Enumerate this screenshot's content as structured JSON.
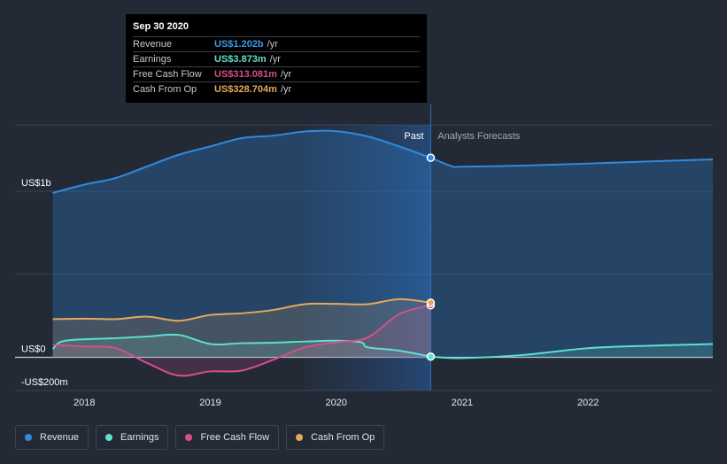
{
  "tooltip": {
    "date": "Sep 30 2020",
    "rows": [
      {
        "name": "Revenue",
        "value": "US$1.202b",
        "unit": "/yr",
        "color": "#3d9ae8"
      },
      {
        "name": "Earnings",
        "value": "US$3.873m",
        "unit": "/yr",
        "color": "#5fe0cc"
      },
      {
        "name": "Free Cash Flow",
        "value": "US$313.081m",
        "unit": "/yr",
        "color": "#d4508c"
      },
      {
        "name": "Cash From Op",
        "value": "US$328.704m",
        "unit": "/yr",
        "color": "#e8a85c"
      }
    ]
  },
  "legend": [
    {
      "label": "Revenue",
      "color": "#2f8ae0"
    },
    {
      "label": "Earnings",
      "color": "#5fe0cc"
    },
    {
      "label": "Free Cash Flow",
      "color": "#d4508c"
    },
    {
      "label": "Cash From Op",
      "color": "#e8a85c"
    }
  ],
  "chart_data": {
    "type": "line",
    "title": "",
    "y_axis_labels": [
      "US$1b",
      "US$0",
      "-US$200m"
    ],
    "x_tick_labels": [
      "2018",
      "2019",
      "2020",
      "2021",
      "2022"
    ],
    "past_label": "Past",
    "forecast_label": "Analysts Forecasts",
    "ylim": [
      -200,
      1400
    ],
    "xlim": [
      2017.45,
      2022.99
    ],
    "divider_x": 2020.75,
    "shade_start_x": 2019.75,
    "series": [
      {
        "name": "Revenue",
        "color": "#2f8ae0",
        "fill": true,
        "past": [
          [
            2017.75,
            990
          ],
          [
            2018.0,
            1040
          ],
          [
            2018.25,
            1080
          ],
          [
            2018.5,
            1150
          ],
          [
            2018.75,
            1220
          ],
          [
            2019.0,
            1270
          ],
          [
            2019.25,
            1320
          ],
          [
            2019.5,
            1335
          ],
          [
            2019.75,
            1360
          ],
          [
            2020.0,
            1362
          ],
          [
            2020.25,
            1330
          ],
          [
            2020.5,
            1270
          ],
          [
            2020.75,
            1202
          ]
        ],
        "forecast": [
          [
            2020.75,
            1202
          ],
          [
            2020.92,
            1150
          ],
          [
            2021.0,
            1148
          ],
          [
            2021.5,
            1155
          ],
          [
            2022.0,
            1167
          ],
          [
            2022.5,
            1180
          ],
          [
            2022.99,
            1192
          ]
        ]
      },
      {
        "name": "Earnings",
        "color": "#5fe0cc",
        "fill": true,
        "past": [
          [
            2017.75,
            50
          ],
          [
            2017.85,
            100
          ],
          [
            2018.25,
            115
          ],
          [
            2018.5,
            125
          ],
          [
            2018.75,
            135
          ],
          [
            2019.0,
            80
          ],
          [
            2019.25,
            85
          ],
          [
            2019.5,
            88
          ],
          [
            2019.75,
            95
          ],
          [
            2020.0,
            100
          ],
          [
            2020.2,
            90
          ],
          [
            2020.25,
            60
          ],
          [
            2020.5,
            40
          ],
          [
            2020.75,
            3.9
          ]
        ],
        "forecast": [
          [
            2020.75,
            3.9
          ],
          [
            2021.0,
            -5
          ],
          [
            2021.5,
            15
          ],
          [
            2022.0,
            55
          ],
          [
            2022.5,
            70
          ],
          [
            2022.99,
            80
          ]
        ]
      },
      {
        "name": "Free Cash Flow",
        "color": "#d4508c",
        "fill": true,
        "past": [
          [
            2017.75,
            75
          ],
          [
            2018.0,
            65
          ],
          [
            2018.25,
            55
          ],
          [
            2018.5,
            -35
          ],
          [
            2018.75,
            -110
          ],
          [
            2019.0,
            -85
          ],
          [
            2019.25,
            -80
          ],
          [
            2019.5,
            -15
          ],
          [
            2019.75,
            60
          ],
          [
            2020.0,
            90
          ],
          [
            2020.25,
            120
          ],
          [
            2020.5,
            260
          ],
          [
            2020.75,
            313
          ]
        ],
        "forecast": []
      },
      {
        "name": "Cash From Op",
        "color": "#e8a85c",
        "fill": true,
        "past": [
          [
            2017.75,
            230
          ],
          [
            2018.0,
            233
          ],
          [
            2018.25,
            230
          ],
          [
            2018.5,
            245
          ],
          [
            2018.75,
            220
          ],
          [
            2019.0,
            255
          ],
          [
            2019.25,
            265
          ],
          [
            2019.5,
            285
          ],
          [
            2019.75,
            320
          ],
          [
            2020.0,
            322
          ],
          [
            2020.25,
            320
          ],
          [
            2020.5,
            350
          ],
          [
            2020.75,
            329
          ]
        ],
        "forecast": []
      }
    ]
  }
}
